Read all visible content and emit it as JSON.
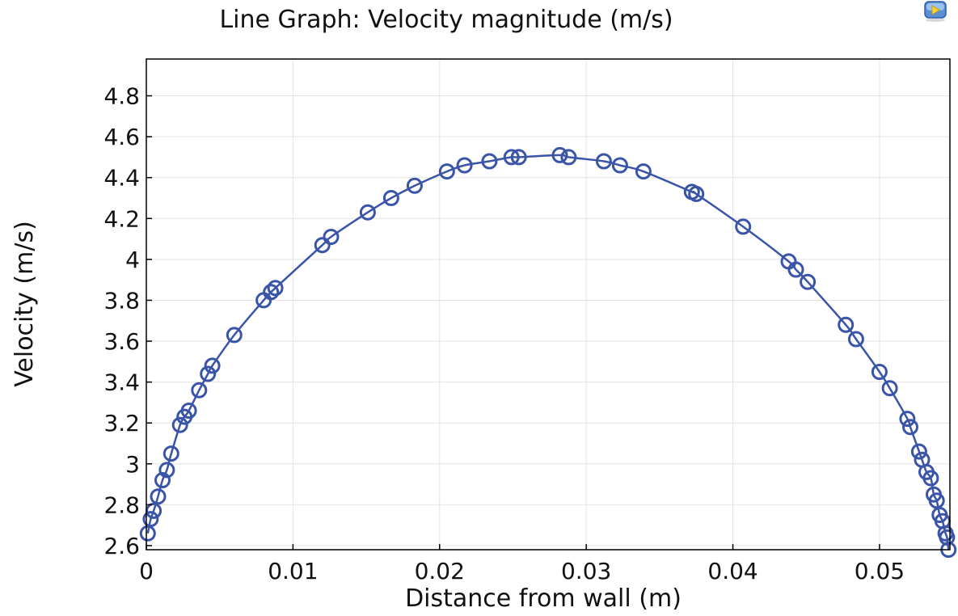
{
  "chart_data": {
    "type": "line",
    "title": "Line Graph: Velocity magnitude (m/s)",
    "xlabel": "Distance from wall (m)",
    "ylabel": "Velocity (m/s)",
    "xlim": [
      0,
      0.0548
    ],
    "ylim": [
      2.58,
      4.98
    ],
    "xticks": [
      0,
      0.01,
      0.02,
      0.03,
      0.04,
      0.05
    ],
    "xtick_labels": [
      "0",
      "0.01",
      "0.02",
      "0.03",
      "0.04",
      "0.05"
    ],
    "yticks": [
      2.6,
      2.8,
      3.0,
      3.2,
      3.4,
      3.6,
      3.8,
      4.0,
      4.2,
      4.4,
      4.6,
      4.8
    ],
    "ytick_labels": [
      "2.6",
      "2.8",
      "3",
      "3.2",
      "3.4",
      "3.6",
      "3.8",
      "4",
      "4.2",
      "4.4",
      "4.6",
      "4.8"
    ],
    "grid": true,
    "line_color": "#3a55a8",
    "series": [
      {
        "name": "Velocity magnitude",
        "x": [
          0.0001,
          0.0003,
          0.0005,
          0.0008,
          0.0011,
          0.0014,
          0.0017,
          0.0023,
          0.0026,
          0.0029,
          0.0036,
          0.0042,
          0.0045,
          0.006,
          0.008,
          0.0085,
          0.0088,
          0.012,
          0.0126,
          0.0151,
          0.0167,
          0.0183,
          0.0205,
          0.0217,
          0.0234,
          0.0249,
          0.0254,
          0.0282,
          0.0288,
          0.0312,
          0.0323,
          0.0339,
          0.0372,
          0.0375,
          0.0407,
          0.0438,
          0.0443,
          0.0451,
          0.0477,
          0.0484,
          0.05,
          0.0507,
          0.0519,
          0.0521,
          0.0527,
          0.0529,
          0.0532,
          0.0535,
          0.0537,
          0.0539,
          0.0541,
          0.0543,
          0.0545,
          0.0546,
          0.0547
        ],
        "y": [
          2.66,
          2.73,
          2.77,
          2.84,
          2.92,
          2.97,
          3.05,
          3.19,
          3.23,
          3.26,
          3.36,
          3.44,
          3.48,
          3.63,
          3.8,
          3.84,
          3.86,
          4.07,
          4.11,
          4.23,
          4.3,
          4.36,
          4.43,
          4.46,
          4.48,
          4.5,
          4.5,
          4.51,
          4.5,
          4.48,
          4.46,
          4.43,
          4.33,
          4.32,
          4.16,
          3.99,
          3.95,
          3.89,
          3.68,
          3.61,
          3.45,
          3.37,
          3.22,
          3.18,
          3.06,
          3.02,
          2.96,
          2.93,
          2.85,
          2.82,
          2.75,
          2.72,
          2.66,
          2.64,
          2.58
        ]
      }
    ]
  }
}
